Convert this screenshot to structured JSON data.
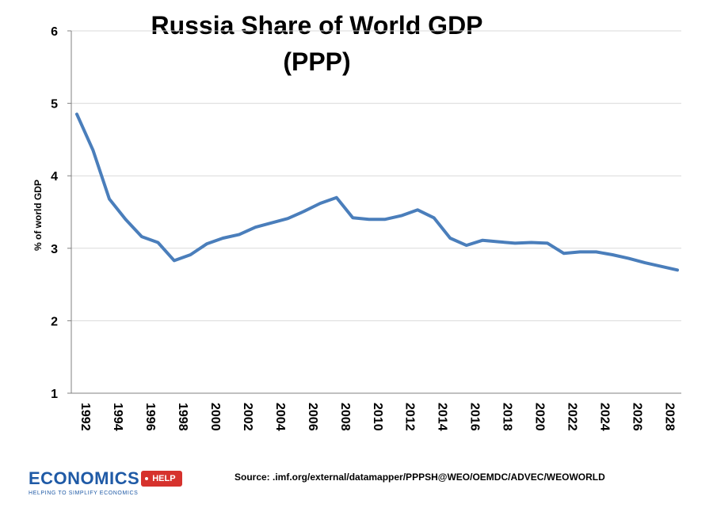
{
  "chart_data": {
    "type": "line",
    "title_line1": "Russia Share of World GDP",
    "title_line2": "(PPP)",
    "ylabel": "% of world GDP",
    "xlabel": "",
    "ylim": [
      1,
      6
    ],
    "yticks": [
      1,
      2,
      3,
      4,
      5,
      6
    ],
    "xlim": [
      1992,
      2029
    ],
    "xticks": [
      1992,
      1994,
      1996,
      1998,
      2000,
      2002,
      2004,
      2006,
      2008,
      2010,
      2012,
      2014,
      2016,
      2018,
      2020,
      2022,
      2024,
      2026,
      2028
    ],
    "grid": true,
    "legend": "none",
    "line_color": "#4a7ebb",
    "x": [
      1992,
      1993,
      1994,
      1995,
      1996,
      1997,
      1998,
      1999,
      2000,
      2001,
      2002,
      2003,
      2004,
      2005,
      2006,
      2007,
      2008,
      2009,
      2010,
      2011,
      2012,
      2013,
      2014,
      2015,
      2016,
      2017,
      2018,
      2019,
      2020,
      2021,
      2022,
      2023,
      2024,
      2025,
      2026,
      2027,
      2028,
      2029
    ],
    "values": [
      4.85,
      4.35,
      3.68,
      3.4,
      3.16,
      3.08,
      2.83,
      2.91,
      3.06,
      3.14,
      3.19,
      3.29,
      3.35,
      3.41,
      3.51,
      3.62,
      3.7,
      3.42,
      3.4,
      3.4,
      3.45,
      3.53,
      3.42,
      3.14,
      3.04,
      3.11,
      3.09,
      3.07,
      3.08,
      3.07,
      2.93,
      2.95,
      2.95,
      2.91,
      2.86,
      2.8,
      2.75,
      2.7
    ]
  },
  "source": "Source: .imf.org/external/datamapper/PPPSH@WEO/OEMDC/ADVEC/WEOWORLD",
  "logo": {
    "word": "ECONOMICS",
    "tag": "HELP",
    "tagline": "HELPING TO SIMPLIFY ECONOMICS"
  }
}
